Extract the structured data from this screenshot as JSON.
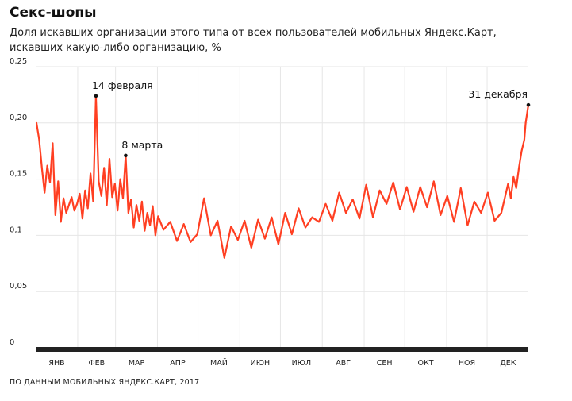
{
  "title": "Секс-шопы",
  "subtitle": "Доля искавших организации этого типа от всех пользователей мобильных Яндекс.Карт, искавших какую-либо организацию, %",
  "source": "ПО ДАННЫМ МОБИЛЬНЫХ ЯНДЕКС.КАРТ, 2017",
  "colors": {
    "line": "#ff3f22",
    "axis": "#222222",
    "grid": "#e6e6e6",
    "marker": "#111111"
  },
  "chart_data": {
    "type": "line",
    "title": "Секс-шопы",
    "xlabel": "",
    "ylabel": "",
    "xlim": [
      1,
      365
    ],
    "ylim": [
      0,
      0.25
    ],
    "grid": true,
    "legend": "none",
    "yticks": [
      {
        "value": 0,
        "label": "0"
      },
      {
        "value": 0.05,
        "label": "0,05"
      },
      {
        "value": 0.1,
        "label": "0,1"
      },
      {
        "value": 0.15,
        "label": "0,15"
      },
      {
        "value": 0.2,
        "label": "0,20"
      },
      {
        "value": 0.25,
        "label": "0,25"
      }
    ],
    "months": [
      {
        "label": "ЯНВ",
        "start": 1,
        "end": 31
      },
      {
        "label": "ФЕВ",
        "start": 32,
        "end": 59
      },
      {
        "label": "МАР",
        "start": 60,
        "end": 90
      },
      {
        "label": "АПР",
        "start": 91,
        "end": 120
      },
      {
        "label": "МАЙ",
        "start": 121,
        "end": 151
      },
      {
        "label": "ИЮН",
        "start": 152,
        "end": 181
      },
      {
        "label": "ИЮЛ",
        "start": 182,
        "end": 212
      },
      {
        "label": "АВГ",
        "start": 213,
        "end": 243
      },
      {
        "label": "СЕН",
        "start": 244,
        "end": 273
      },
      {
        "label": "ОКТ",
        "start": 274,
        "end": 304
      },
      {
        "label": "НОЯ",
        "start": 305,
        "end": 334
      },
      {
        "label": "ДЕК",
        "start": 335,
        "end": 365
      }
    ],
    "annotations": [
      {
        "label": "14 февраля",
        "day": 45,
        "value": 0.224
      },
      {
        "label": "8 марта",
        "day": 67,
        "value": 0.171
      },
      {
        "label": "31 декабря",
        "day": 365,
        "value": 0.216
      }
    ],
    "series": [
      {
        "x": [
          1,
          3,
          5,
          7,
          9,
          11,
          13,
          15,
          17,
          19,
          21,
          23,
          25,
          27,
          29,
          31,
          33,
          35,
          37,
          39,
          41,
          43,
          45,
          47,
          49,
          51,
          53,
          55,
          57,
          59,
          61,
          63,
          65,
          67,
          69,
          71,
          73,
          75,
          77,
          79,
          81,
          83,
          85,
          87,
          89,
          91,
          95,
          100,
          105,
          110,
          115,
          120,
          125,
          130,
          135,
          140,
          145,
          150,
          155,
          160,
          165,
          170,
          175,
          180,
          185,
          190,
          195,
          200,
          205,
          210,
          215,
          220,
          225,
          230,
          235,
          240,
          245,
          250,
          255,
          260,
          265,
          270,
          275,
          280,
          285,
          290,
          295,
          300,
          305,
          310,
          315,
          320,
          325,
          330,
          335,
          340,
          345,
          350,
          352,
          354,
          356,
          358,
          360,
          362,
          363,
          364,
          365
        ],
        "values": [
          0.2,
          0.185,
          0.16,
          0.138,
          0.162,
          0.147,
          0.182,
          0.118,
          0.148,
          0.112,
          0.133,
          0.12,
          0.127,
          0.134,
          0.122,
          0.128,
          0.137,
          0.115,
          0.14,
          0.124,
          0.155,
          0.13,
          0.224,
          0.148,
          0.135,
          0.16,
          0.127,
          0.168,
          0.134,
          0.146,
          0.122,
          0.15,
          0.133,
          0.171,
          0.12,
          0.132,
          0.107,
          0.127,
          0.113,
          0.13,
          0.104,
          0.12,
          0.109,
          0.126,
          0.1,
          0.117,
          0.105,
          0.112,
          0.095,
          0.11,
          0.094,
          0.101,
          0.133,
          0.1,
          0.113,
          0.08,
          0.108,
          0.096,
          0.113,
          0.089,
          0.114,
          0.097,
          0.116,
          0.092,
          0.12,
          0.101,
          0.124,
          0.107,
          0.116,
          0.112,
          0.128,
          0.113,
          0.138,
          0.12,
          0.132,
          0.115,
          0.145,
          0.116,
          0.14,
          0.128,
          0.147,
          0.123,
          0.143,
          0.121,
          0.143,
          0.125,
          0.148,
          0.118,
          0.135,
          0.112,
          0.142,
          0.109,
          0.13,
          0.12,
          0.138,
          0.113,
          0.12,
          0.146,
          0.133,
          0.152,
          0.142,
          0.16,
          0.175,
          0.185,
          0.2,
          0.208,
          0.216
        ]
      }
    ]
  }
}
